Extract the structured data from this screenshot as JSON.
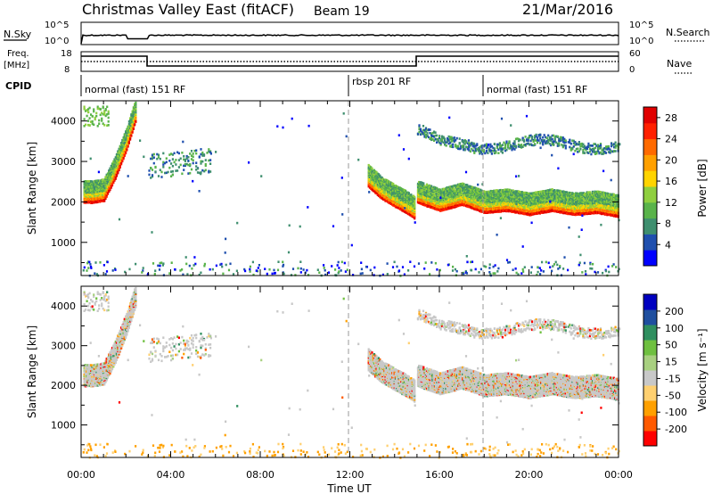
{
  "header": {
    "title": "Christmas Valley East (fitACF)",
    "beam": "Beam 19",
    "date": "21/Mar/2016"
  },
  "strips": {
    "nsky_label": "N.Sky",
    "nsky_ticks": [
      "10^5",
      "10^0"
    ],
    "nsearch_label": "N.Search",
    "nsearch_ticks": [
      "10^5",
      "10^0"
    ],
    "freq_label_1": "Freq.",
    "freq_label_2": "[MHz]",
    "freq_ticks": [
      "18",
      "8"
    ],
    "nave_label": "Nave",
    "nave_ticks": [
      "60",
      "0"
    ],
    "cpid_label": "CPID",
    "cpid_modes": [
      {
        "label": "normal (fast) 151 RF",
        "start": 0,
        "end": 12
      },
      {
        "label": "rbsp 201 RF",
        "start": 12,
        "end": 18
      },
      {
        "label": "normal (fast) 151 RF",
        "start": 18,
        "end": 24
      }
    ]
  },
  "chart_data": [
    {
      "type": "heatmap",
      "ylabel": "Slant Range [km]",
      "xlim": [
        0,
        24
      ],
      "ylim": [
        180,
        4500
      ],
      "yticks": [
        "4000",
        "3000",
        "2000",
        "1000"
      ],
      "colorbar": {
        "label": "Power [dB]",
        "ticks": [
          "28",
          "24",
          "20",
          "16",
          "12",
          "8",
          "4"
        ],
        "range": [
          0,
          30
        ]
      },
      "series": [
        {
          "x": [
            0.1,
            0.5,
            1.0,
            1.5,
            2.0,
            2.4
          ],
          "y": [
            2000,
            2000,
            2050,
            2600,
            3300,
            4000
          ]
        },
        {
          "x": [
            12.8,
            13.4,
            14.0,
            14.5,
            14.9
          ],
          "y": [
            2400,
            2100,
            1900,
            1750,
            1600
          ]
        },
        {
          "x": [
            15.0,
            16.0,
            17.0,
            18.0,
            19.0,
            20.0,
            21.0,
            22.0,
            23.0,
            24.0
          ],
          "y": [
            2000,
            1800,
            1950,
            1750,
            1800,
            1700,
            1800,
            1700,
            1750,
            1650
          ]
        }
      ]
    },
    {
      "type": "heatmap",
      "ylabel": "Slant Range [km]",
      "xlabel": "Time UT",
      "xlim": [
        0,
        24
      ],
      "ylim": [
        180,
        4500
      ],
      "yticks": [
        "4000",
        "3000",
        "2000",
        "1000"
      ],
      "xticks": [
        "00:00",
        "04:00",
        "08:00",
        "12:00",
        "16:00",
        "20:00",
        "00:00"
      ],
      "colorbar": {
        "label": "Velocity [m s⁻¹]",
        "ticks": [
          "200",
          "100",
          "50",
          "15",
          "-15",
          "-50",
          "-100",
          "-200"
        ]
      }
    }
  ],
  "colors": {
    "power_scale": [
      "#0000ff",
      "#1f4fae",
      "#3f8f6f",
      "#59b34a",
      "#8fcf3f",
      "#ffd400",
      "#ffa000",
      "#ff6a00",
      "#ff2000",
      "#e00000"
    ],
    "velocity_scale": [
      "#ff0000",
      "#ff5a00",
      "#ffa000",
      "#ffd070",
      "#c8c8c8",
      "#a8d080",
      "#6fc040",
      "#2f8f5f",
      "#1f4f9f",
      "#0000c0"
    ]
  }
}
